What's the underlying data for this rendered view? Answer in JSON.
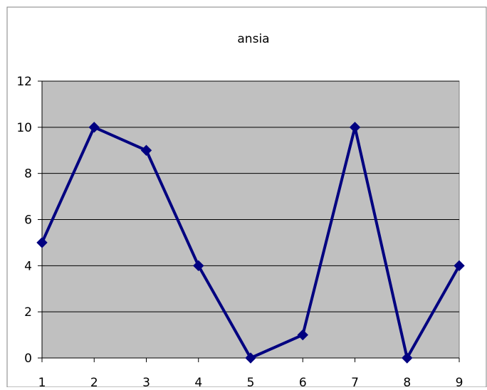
{
  "chart_data": {
    "type": "line",
    "title": "ansia",
    "xlabel": "",
    "ylabel": "",
    "categories": [
      "1",
      "2",
      "3",
      "4",
      "5",
      "6",
      "7",
      "8",
      "9"
    ],
    "series": [
      {
        "values": [
          5,
          10,
          9,
          4,
          0,
          1,
          10,
          0,
          4
        ]
      }
    ],
    "ylim": [
      0,
      12
    ],
    "yticks": [
      0,
      2,
      4,
      6,
      8,
      10,
      12
    ],
    "grid": true,
    "legend": "none",
    "colors": {
      "line": "#000080",
      "plot_background": "#c0c0c0",
      "gridline": "#000000"
    }
  }
}
